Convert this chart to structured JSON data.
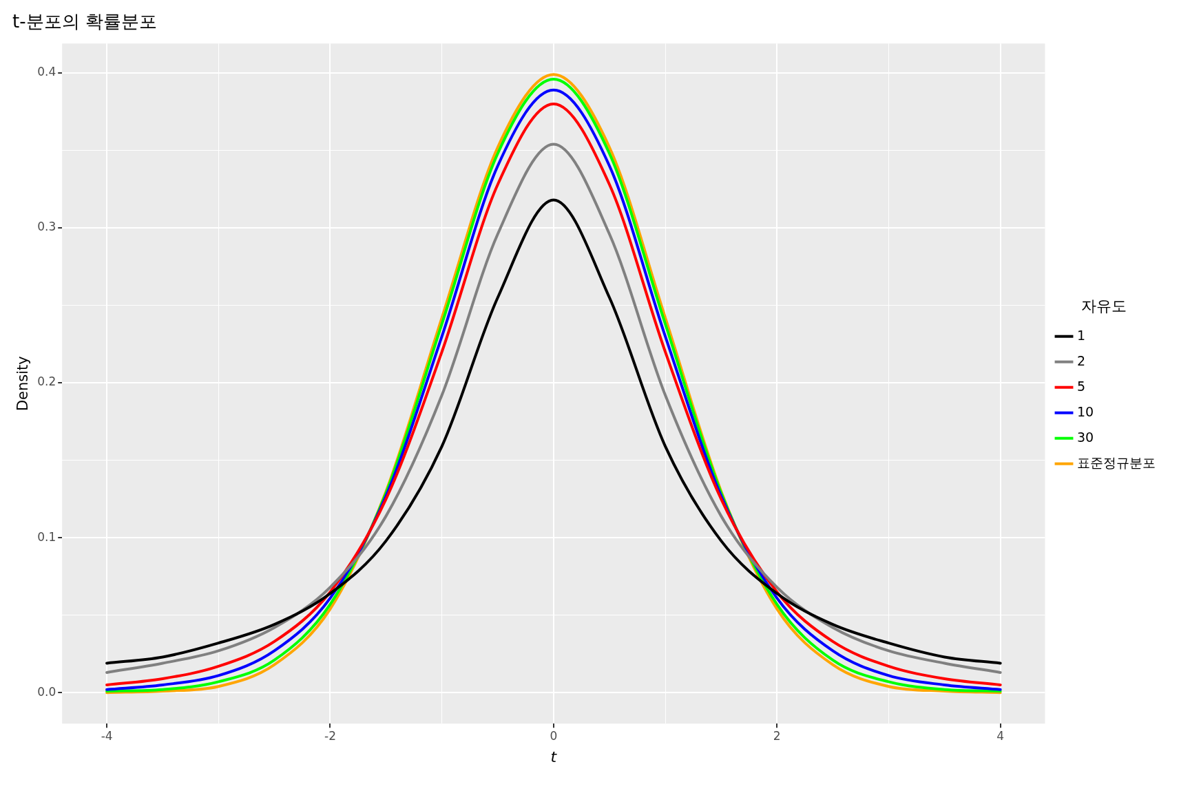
{
  "chart_data": {
    "type": "line",
    "title": "t-분포의 확률분포",
    "xlabel": "t",
    "ylabel": "Density",
    "legend_title": "자유도",
    "legend": "right",
    "grid": true,
    "marker": "none",
    "line_style": "solid",
    "x": [
      -4,
      -3.5,
      -3,
      -2.5,
      -2,
      -1.5,
      -1,
      -0.5,
      0,
      0.5,
      1,
      1.5,
      2,
      2.5,
      3,
      3.5,
      4
    ],
    "xlim": [
      -4.4,
      4.4
    ],
    "xticks": [
      -4,
      {
        "value": -3,
        "label": null
      },
      -2,
      {
        "value": -1,
        "label": null
      },
      0,
      {
        "value": 1,
        "label": null
      },
      2,
      {
        "value": 3,
        "label": null
      },
      4
    ],
    "ylim": [
      -0.02,
      0.419
    ],
    "yticks": [
      {
        "value": 0,
        "label": "0.0"
      },
      {
        "value": 0.05,
        "label": null
      },
      0.1,
      {
        "value": 0.15,
        "label": null
      },
      0.2,
      {
        "value": 0.25,
        "label": null
      },
      0.3,
      {
        "value": 0.35,
        "label": null
      },
      0.4
    ],
    "series": [
      {
        "name": "1",
        "color": "#000000",
        "values": [
          0.019,
          0.023,
          0.032,
          0.044,
          0.064,
          0.098,
          0.159,
          0.255,
          0.318,
          0.255,
          0.159,
          0.098,
          0.064,
          0.044,
          0.032,
          0.023,
          0.019
        ]
      },
      {
        "name": "2",
        "color": "#808080",
        "values": [
          0.013,
          0.019,
          0.027,
          0.042,
          0.068,
          0.114,
          0.192,
          0.296,
          0.354,
          0.296,
          0.192,
          0.114,
          0.068,
          0.042,
          0.027,
          0.019,
          0.013
        ]
      },
      {
        "name": "5",
        "color": "#ff0000",
        "values": [
          0.005,
          0.009,
          0.017,
          0.033,
          0.065,
          0.125,
          0.22,
          0.328,
          0.38,
          0.328,
          0.22,
          0.125,
          0.065,
          0.033,
          0.017,
          0.009,
          0.005
        ]
      },
      {
        "name": "10",
        "color": "#0000ff",
        "values": [
          0.002,
          0.005,
          0.011,
          0.027,
          0.061,
          0.127,
          0.23,
          0.34,
          0.389,
          0.34,
          0.23,
          0.127,
          0.061,
          0.027,
          0.011,
          0.005,
          0.002
        ]
      },
      {
        "name": "30",
        "color": "#00ff00",
        "values": [
          0.001,
          0.002,
          0.007,
          0.021,
          0.057,
          0.129,
          0.238,
          0.348,
          0.396,
          0.348,
          0.238,
          0.129,
          0.057,
          0.021,
          0.007,
          0.002,
          0.001
        ]
      },
      {
        "name": "표준정규분포",
        "color": "#ffa500",
        "values": [
          0.0,
          0.001,
          0.004,
          0.018,
          0.054,
          0.13,
          0.242,
          0.352,
          0.399,
          0.352,
          0.242,
          0.13,
          0.054,
          0.018,
          0.004,
          0.001,
          0.0
        ]
      }
    ]
  }
}
